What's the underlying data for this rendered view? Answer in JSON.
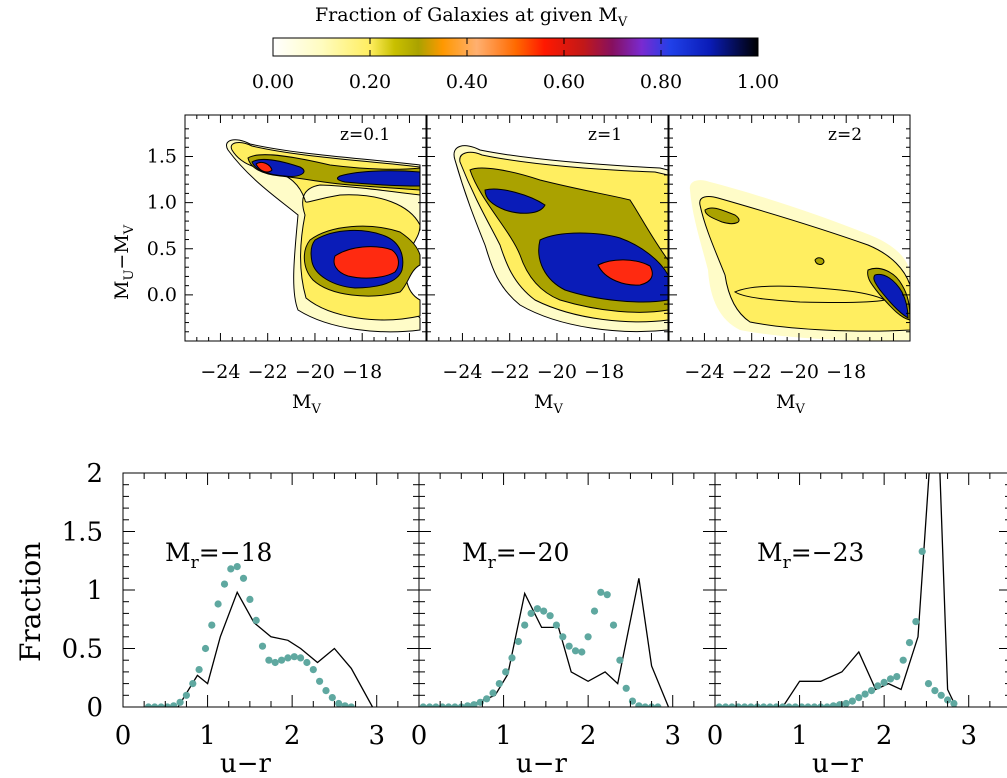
{
  "figure_title_main": "Fraction of Galaxies at given M",
  "figure_title_sub": "V",
  "colorbar": {
    "stops": [
      {
        "v": 0.0,
        "c": "#ffffff"
      },
      {
        "v": 0.1,
        "c": "#fffcc0"
      },
      {
        "v": 0.2,
        "c": "#ffee60"
      },
      {
        "v": 0.25,
        "c": "#c9c000"
      },
      {
        "v": 0.3,
        "c": "#aaa200"
      },
      {
        "v": 0.35,
        "c": "#ff9800"
      },
      {
        "v": 0.42,
        "c": "#ffb070"
      },
      {
        "v": 0.5,
        "c": "#ff6a00"
      },
      {
        "v": 0.56,
        "c": "#ff1800"
      },
      {
        "v": 0.64,
        "c": "#c21818"
      },
      {
        "v": 0.7,
        "c": "#861060"
      },
      {
        "v": 0.76,
        "c": "#7a2ad0"
      },
      {
        "v": 0.82,
        "c": "#2040e8"
      },
      {
        "v": 0.9,
        "c": "#0a1cb8"
      },
      {
        "v": 1.0,
        "c": "#000000"
      }
    ],
    "tick_labels": [
      "0.00",
      "0.20",
      "0.40",
      "0.60",
      "0.80",
      "1.00"
    ]
  },
  "top_panels": {
    "ylabel_main": "M",
    "ylabel_sub1": "U",
    "ylabel_dash": "−M",
    "ylabel_sub2": "V",
    "xlabel_main": "M",
    "xlabel_sub": "V",
    "xlim": [
      -25.5,
      -15.3
    ],
    "ylim": [
      -0.5,
      1.95
    ],
    "xtick_labels": [
      "−24",
      "−22",
      "−20",
      "−18"
    ],
    "ytick_labels": [
      "0.0",
      "0.5",
      "1.0",
      "1.5"
    ],
    "panels": [
      {
        "label": "z=0.1"
      },
      {
        "label": "z=1"
      },
      {
        "label": "z=2"
      }
    ]
  },
  "chart_data": [
    {
      "type": "line",
      "label_main": "M",
      "label_sub": "r",
      "label_value": "=−18",
      "xlabel": "u−r",
      "ylabel": "Fraction",
      "xlim": [
        0,
        3.5
      ],
      "ylim": [
        0,
        2
      ],
      "xtick_labels": [
        "0",
        "1",
        "2",
        "3"
      ],
      "ytick_labels": [
        "0",
        "0.5",
        "1",
        "1.5",
        "2"
      ],
      "series": [
        {
          "type": "line",
          "color": "#000000",
          "x": [
            0.65,
            0.88,
            1.0,
            1.15,
            1.35,
            1.55,
            1.75,
            1.95,
            2.1,
            2.3,
            2.5,
            2.7,
            2.95
          ],
          "y": [
            0.0,
            0.27,
            0.2,
            0.6,
            0.98,
            0.72,
            0.6,
            0.57,
            0.5,
            0.38,
            0.5,
            0.33,
            0.0
          ]
        },
        {
          "type": "scatter",
          "color": "#5fa8a0",
          "x": [
            0.3,
            0.375,
            0.45,
            0.525,
            0.6,
            0.675,
            0.75,
            0.825,
            0.9,
            0.975,
            1.05,
            1.125,
            1.2,
            1.275,
            1.35,
            1.425,
            1.5,
            1.575,
            1.65,
            1.725,
            1.8,
            1.875,
            1.95,
            2.025,
            2.1,
            2.175,
            2.25,
            2.325,
            2.4,
            2.475,
            2.55,
            2.625,
            2.7
          ],
          "y": [
            0.0,
            0.0,
            0.0,
            0.0,
            0.01,
            0.04,
            0.1,
            0.2,
            0.32,
            0.5,
            0.7,
            0.88,
            1.05,
            1.18,
            1.2,
            1.1,
            0.92,
            0.74,
            0.52,
            0.4,
            0.38,
            0.4,
            0.42,
            0.43,
            0.42,
            0.38,
            0.32,
            0.22,
            0.14,
            0.08,
            0.03,
            0.01,
            0.0
          ]
        }
      ]
    },
    {
      "type": "line",
      "label_main": "M",
      "label_sub": "r",
      "label_value": "=−20",
      "xlabel": "u−r",
      "ylabel": "Fraction",
      "xlim": [
        0,
        3.5
      ],
      "ylim": [
        0,
        2
      ],
      "xtick_labels": [
        "0",
        "1",
        "2",
        "3"
      ],
      "series": [
        {
          "type": "line",
          "color": "#000000",
          "x": [
            0.55,
            0.9,
            1.05,
            1.25,
            1.45,
            1.65,
            1.8,
            2.0,
            2.2,
            2.35,
            2.6,
            2.75,
            2.95
          ],
          "y": [
            0.0,
            0.1,
            0.28,
            0.97,
            0.68,
            0.68,
            0.3,
            0.22,
            0.3,
            0.2,
            1.1,
            0.35,
            0.0
          ]
        },
        {
          "type": "scatter",
          "color": "#5fa8a0",
          "x": [
            0.05,
            0.125,
            0.2,
            0.275,
            0.35,
            0.425,
            0.5,
            0.575,
            0.65,
            0.725,
            0.8,
            0.875,
            0.95,
            1.025,
            1.1,
            1.175,
            1.25,
            1.325,
            1.4,
            1.475,
            1.55,
            1.625,
            1.7,
            1.775,
            1.85,
            1.925,
            2.0,
            2.075,
            2.15,
            2.225,
            2.3,
            2.375,
            2.45,
            2.525,
            2.6,
            2.675,
            2.75,
            2.825
          ],
          "y": [
            0.0,
            0.0,
            0.0,
            0.0,
            0.0,
            0.0,
            0.0,
            0.01,
            0.02,
            0.04,
            0.07,
            0.12,
            0.2,
            0.3,
            0.42,
            0.56,
            0.7,
            0.8,
            0.84,
            0.82,
            0.78,
            0.7,
            0.6,
            0.52,
            0.48,
            0.47,
            0.6,
            0.82,
            0.98,
            0.96,
            0.7,
            0.4,
            0.16,
            0.05,
            0.01,
            0.0,
            0.0,
            0.0
          ]
        }
      ]
    },
    {
      "type": "line",
      "label_main": "M",
      "label_sub": "r",
      "label_value": "=−23",
      "xlabel": "u−r",
      "ylabel": "Fraction",
      "xlim": [
        0,
        3.5
      ],
      "ylim": [
        0,
        2
      ],
      "xtick_labels": [
        "0",
        "1",
        "2",
        "3"
      ],
      "series": [
        {
          "type": "line",
          "color": "#000000",
          "x": [
            0.8,
            1.0,
            1.25,
            1.5,
            1.7,
            1.9,
            2.05,
            2.2,
            2.4,
            2.55,
            2.65,
            2.75,
            2.85
          ],
          "y": [
            0.0,
            0.22,
            0.22,
            0.3,
            0.47,
            0.15,
            0.2,
            0.15,
            0.6,
            2.2,
            2.2,
            0.15,
            0.0
          ]
        },
        {
          "type": "scatter",
          "color": "#5fa8a0",
          "x": [
            0.05,
            0.125,
            0.2,
            0.275,
            0.35,
            0.425,
            0.5,
            0.575,
            0.65,
            0.725,
            0.8,
            0.875,
            0.95,
            1.025,
            1.1,
            1.175,
            1.25,
            1.325,
            1.4,
            1.475,
            1.55,
            1.625,
            1.7,
            1.775,
            1.85,
            1.925,
            2.0,
            2.075,
            2.15,
            2.225,
            2.3,
            2.375,
            2.45,
            2.525,
            2.6,
            2.675,
            2.75,
            2.825
          ],
          "y": [
            0.0,
            0.0,
            0.0,
            0.0,
            0.0,
            0.0,
            0.0,
            0.0,
            0.0,
            0.0,
            0.0,
            0.0,
            0.0,
            0.0,
            0.0,
            0.0,
            0.0,
            0.0,
            0.01,
            0.02,
            0.03,
            0.05,
            0.08,
            0.11,
            0.14,
            0.18,
            0.21,
            0.24,
            0.26,
            0.4,
            0.55,
            0.73,
            1.33,
            0.2,
            0.14,
            0.1,
            0.06,
            0.03
          ]
        }
      ]
    }
  ]
}
